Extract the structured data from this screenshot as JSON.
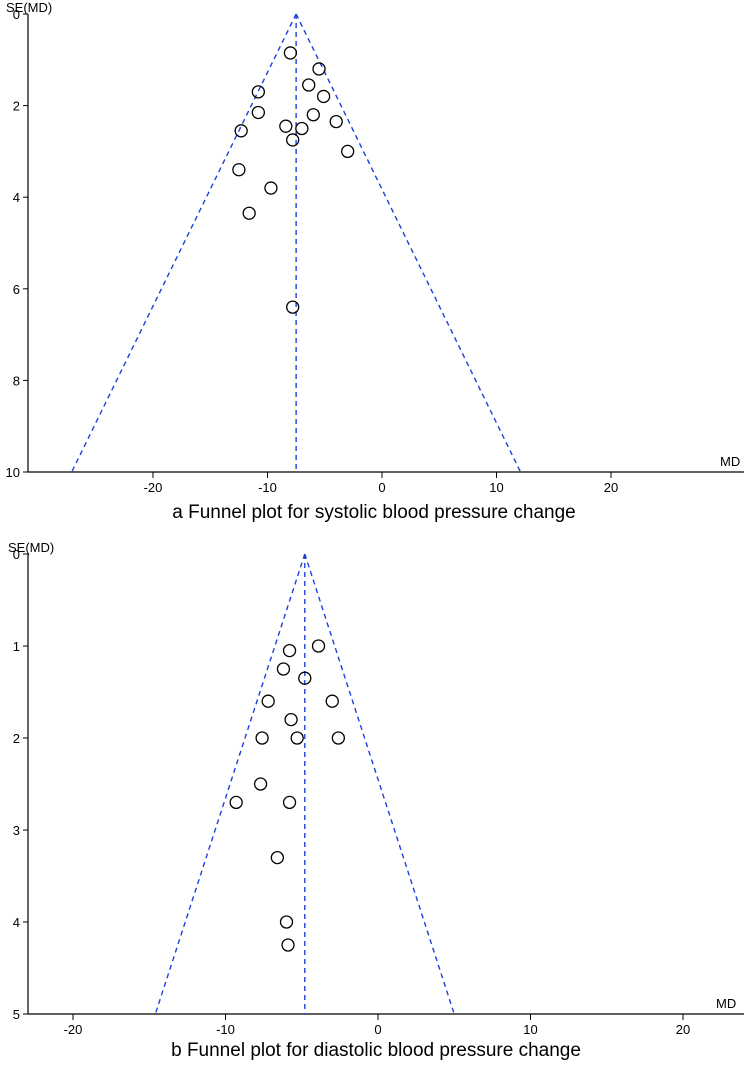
{
  "chart_data": [
    {
      "type": "scatter",
      "title": "a Funnel plot for systolic blood pressure change",
      "xlabel": "MD",
      "ylabel": "SE(MD)",
      "y_inverted": true,
      "xlim": [
        -30,
        30
      ],
      "ylim": [
        0,
        10
      ],
      "xticks": [
        -20,
        -10,
        0,
        10,
        20
      ],
      "xtick_labels": [
        "-20",
        "-10",
        "0",
        "10",
        "20"
      ],
      "yticks": [
        0,
        2,
        4,
        6,
        8,
        10
      ],
      "ytick_labels": [
        "0",
        "2",
        "4",
        "6",
        "8",
        "10"
      ],
      "grid": false,
      "pooled_md": -7.5,
      "funnel_limits": "pseudo 95% confidence limits (dashed blue)",
      "color": "#1f3fe0",
      "points": [
        {
          "x": -8.0,
          "y": 0.85
        },
        {
          "x": -5.5,
          "y": 1.2
        },
        {
          "x": -6.4,
          "y": 1.55
        },
        {
          "x": -10.8,
          "y": 1.7
        },
        {
          "x": -5.1,
          "y": 1.8
        },
        {
          "x": -10.8,
          "y": 2.15
        },
        {
          "x": -6.0,
          "y": 2.2
        },
        {
          "x": -4.0,
          "y": 2.35
        },
        {
          "x": -8.4,
          "y": 2.45
        },
        {
          "x": -12.3,
          "y": 2.55
        },
        {
          "x": -7.0,
          "y": 2.5
        },
        {
          "x": -7.8,
          "y": 2.75
        },
        {
          "x": -3.0,
          "y": 3.0
        },
        {
          "x": -12.5,
          "y": 3.4
        },
        {
          "x": -9.7,
          "y": 3.8
        },
        {
          "x": -11.6,
          "y": 4.35
        },
        {
          "x": -7.8,
          "y": 6.4
        }
      ]
    },
    {
      "type": "scatter",
      "title": "b Funnel plot for diastolic blood pressure change",
      "xlabel": "MD",
      "ylabel": "SE(MD)",
      "y_inverted": true,
      "xlim": [
        -24,
        24
      ],
      "ylim": [
        0,
        5
      ],
      "xticks": [
        -20,
        -10,
        0,
        10,
        20
      ],
      "xtick_labels": [
        "-20",
        "-10",
        "0",
        "10",
        "20"
      ],
      "yticks": [
        0,
        1,
        2,
        3,
        4,
        5
      ],
      "ytick_labels": [
        "0",
        "1",
        "2",
        "3",
        "4",
        "5"
      ],
      "grid": false,
      "pooled_md": -4.8,
      "funnel_limits": "pseudo 95% confidence limits (dashed blue)",
      "color": "#1f3fe0",
      "points": [
        {
          "x": -3.9,
          "y": 1.0
        },
        {
          "x": -5.8,
          "y": 1.05
        },
        {
          "x": -6.2,
          "y": 1.25
        },
        {
          "x": -4.8,
          "y": 1.35
        },
        {
          "x": -7.2,
          "y": 1.6
        },
        {
          "x": -3.0,
          "y": 1.6
        },
        {
          "x": -5.7,
          "y": 1.8
        },
        {
          "x": -7.6,
          "y": 2.0
        },
        {
          "x": -5.3,
          "y": 2.0
        },
        {
          "x": -2.6,
          "y": 2.0
        },
        {
          "x": -7.7,
          "y": 2.5
        },
        {
          "x": -9.3,
          "y": 2.7
        },
        {
          "x": -5.8,
          "y": 2.7
        },
        {
          "x": -6.6,
          "y": 3.3
        },
        {
          "x": -6.0,
          "y": 4.0
        },
        {
          "x": -5.9,
          "y": 4.25
        }
      ]
    }
  ]
}
